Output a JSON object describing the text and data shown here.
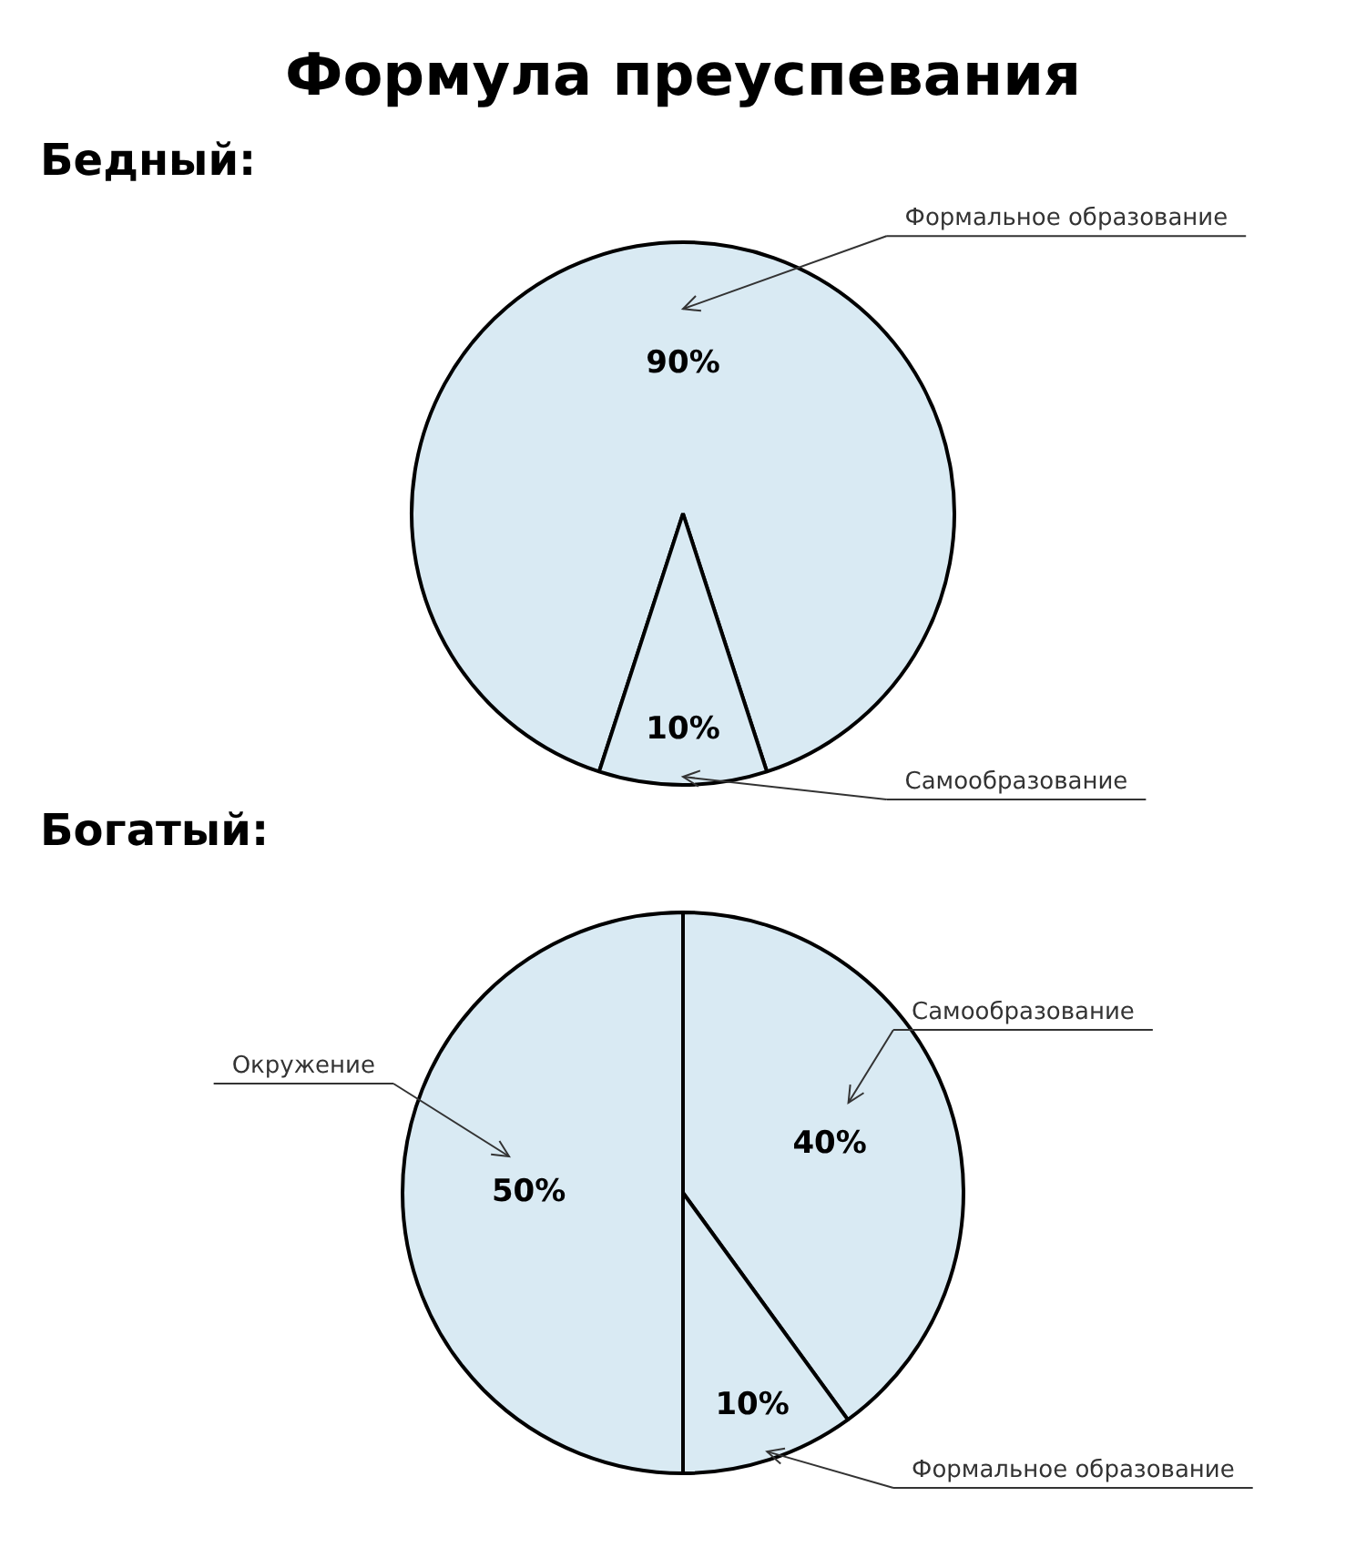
{
  "chart_data": [
    {
      "type": "pie",
      "title": "Формула преуспевания",
      "subtitle": "Бедный:",
      "categories": [
        "Формальное образование",
        "Самообразование"
      ],
      "values": [
        90,
        10
      ],
      "value_labels": [
        "90%",
        "10%"
      ],
      "colors": [
        "#d9eaf3",
        "#d9eaf3"
      ]
    },
    {
      "type": "pie",
      "title": "Богатый:",
      "categories": [
        "Самообразование",
        "Формальное образование",
        "Окружение"
      ],
      "values": [
        40,
        10,
        50
      ],
      "value_labels": [
        "40%",
        "10%",
        "50%"
      ],
      "colors": [
        "#d9eaf3",
        "#d9eaf3",
        "#d9eaf3"
      ]
    }
  ]
}
